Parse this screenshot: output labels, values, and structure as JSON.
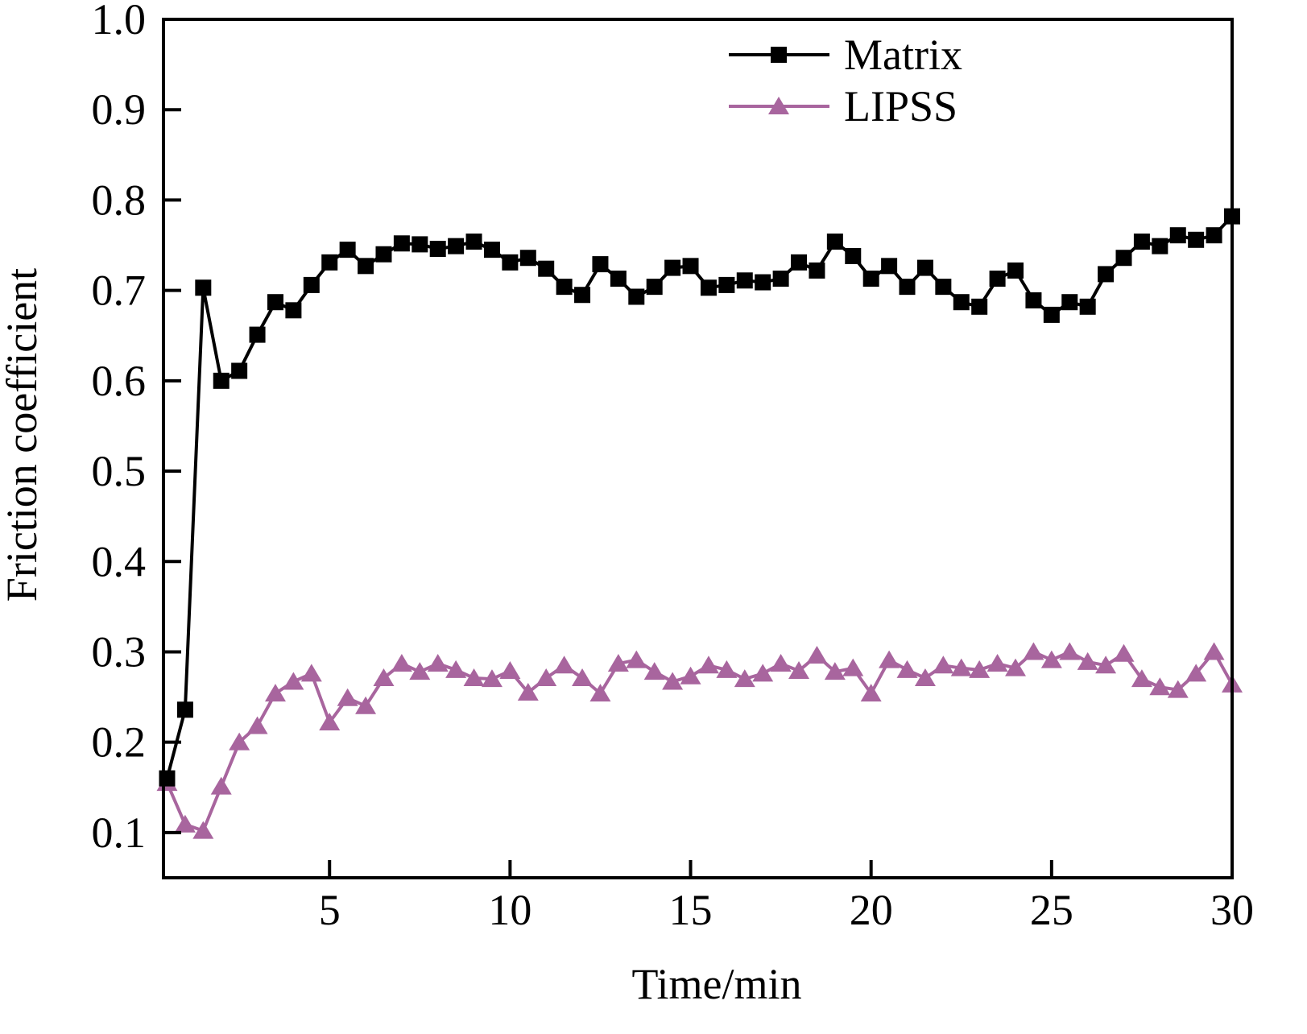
{
  "chart_data": {
    "type": "line",
    "title": "",
    "xlabel": "Time/min",
    "ylabel": "Friction coefficient",
    "xlim": [
      0.4,
      30
    ],
    "ylim": [
      0.05,
      1.0
    ],
    "xticks": [
      5,
      10,
      15,
      20,
      25,
      30
    ],
    "xtick_labels": [
      "5",
      "10",
      "15",
      "20",
      "25",
      "30"
    ],
    "yticks": [
      0.1,
      0.2,
      0.3,
      0.4,
      0.5,
      0.6,
      0.7,
      0.8,
      0.9,
      1.0
    ],
    "ytick_labels": [
      "0.1",
      "0.2",
      "0.3",
      "0.4",
      "0.5",
      "0.6",
      "0.7",
      "0.8",
      "0.9",
      "1.0"
    ],
    "grid": false,
    "legend_position": "top-right",
    "series": [
      {
        "name": "Matrix",
        "color": "#000000",
        "marker": "square",
        "x_start": 0.5,
        "x_step": 0.5,
        "values": [
          0.16,
          0.236,
          0.703,
          0.6,
          0.611,
          0.651,
          0.687,
          0.678,
          0.706,
          0.731,
          0.745,
          0.727,
          0.74,
          0.752,
          0.751,
          0.746,
          0.749,
          0.754,
          0.745,
          0.731,
          0.736,
          0.724,
          0.704,
          0.695,
          0.729,
          0.713,
          0.693,
          0.704,
          0.725,
          0.727,
          0.703,
          0.706,
          0.711,
          0.709,
          0.713,
          0.731,
          0.722,
          0.754,
          0.738,
          0.713,
          0.727,
          0.704,
          0.725,
          0.704,
          0.687,
          0.682,
          0.713,
          0.722,
          0.689,
          0.673,
          0.687,
          0.682,
          0.718,
          0.736,
          0.754,
          0.749,
          0.761,
          0.756,
          0.761,
          0.782
        ]
      },
      {
        "name": "LIPSS",
        "color": "#a8659e",
        "marker": "triangle",
        "x_start": 0.5,
        "x_step": 0.5,
        "values": [
          0.155,
          0.109,
          0.102,
          0.151,
          0.2,
          0.218,
          0.254,
          0.267,
          0.276,
          0.222,
          0.249,
          0.24,
          0.271,
          0.287,
          0.278,
          0.287,
          0.28,
          0.271,
          0.27,
          0.279,
          0.255,
          0.271,
          0.285,
          0.271,
          0.254,
          0.287,
          0.291,
          0.278,
          0.267,
          0.273,
          0.285,
          0.28,
          0.27,
          0.276,
          0.287,
          0.279,
          0.296,
          0.278,
          0.282,
          0.254,
          0.291,
          0.28,
          0.271,
          0.285,
          0.282,
          0.28,
          0.287,
          0.282,
          0.3,
          0.291,
          0.3,
          0.289,
          0.285,
          0.298,
          0.27,
          0.261,
          0.258,
          0.276,
          0.3,
          0.264
        ]
      }
    ]
  }
}
